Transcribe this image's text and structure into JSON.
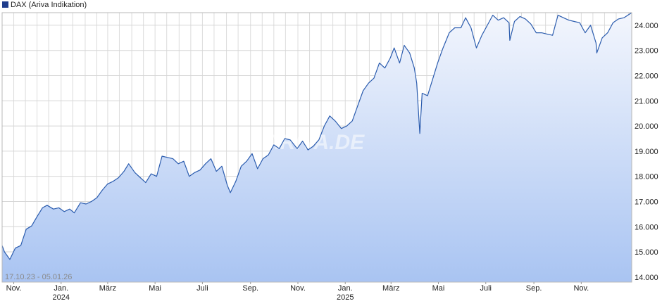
{
  "chart_data": {
    "type": "area",
    "title": "",
    "legend": {
      "label": "DAX (Ariva Indikation)",
      "color": "#1f3d8c",
      "position": "top-left"
    },
    "date_range": "17.10.23 - 05.01.26",
    "watermark": "ARIVA.DE",
    "line_color": "#2b5cae",
    "fill_top_color": "#f3f6fd",
    "fill_bottom_color": "#a9c4f2",
    "grid": true,
    "ylim": [
      13800,
      24500
    ],
    "yticks": [
      "14.000",
      "15.000",
      "16.000",
      "17.000",
      "18.000",
      "19.000",
      "20.000",
      "21.000",
      "22.000",
      "23.000",
      "24.000"
    ],
    "ytick_values": [
      14000,
      15000,
      16000,
      17000,
      18000,
      19000,
      20000,
      21000,
      22000,
      23000,
      24000
    ],
    "xlim": [
      "2023-10-17",
      "2026-01-05"
    ],
    "xticks": [
      {
        "date": "2023-11-01",
        "label": "Nov.",
        "year": ""
      },
      {
        "date": "2024-01-01",
        "label": "Jan.",
        "year": "2024"
      },
      {
        "date": "2024-03-01",
        "label": "März",
        "year": ""
      },
      {
        "date": "2024-05-01",
        "label": "Mai",
        "year": ""
      },
      {
        "date": "2024-07-01",
        "label": "Juli",
        "year": ""
      },
      {
        "date": "2024-09-01",
        "label": "Sep.",
        "year": ""
      },
      {
        "date": "2024-11-01",
        "label": "Nov.",
        "year": ""
      },
      {
        "date": "2025-01-01",
        "label": "Jan.",
        "year": "2025"
      },
      {
        "date": "2025-03-01",
        "label": "März",
        "year": ""
      },
      {
        "date": "2025-05-01",
        "label": "Mai",
        "year": ""
      },
      {
        "date": "2025-07-01",
        "label": "Juli",
        "year": ""
      },
      {
        "date": "2025-09-01",
        "label": "Sep.",
        "year": ""
      },
      {
        "date": "2025-11-01",
        "label": "Nov.",
        "year": ""
      }
    ],
    "series": [
      {
        "name": "DAX (Ariva Indikation)",
        "points": [
          [
            "2023-10-17",
            15250
          ],
          [
            "2023-10-20",
            15000
          ],
          [
            "2023-10-27",
            14700
          ],
          [
            "2023-11-03",
            15150
          ],
          [
            "2023-11-10",
            15250
          ],
          [
            "2023-11-17",
            15900
          ],
          [
            "2023-11-24",
            16030
          ],
          [
            "2023-12-01",
            16400
          ],
          [
            "2023-12-08",
            16750
          ],
          [
            "2023-12-14",
            16850
          ],
          [
            "2023-12-22",
            16700
          ],
          [
            "2023-12-29",
            16750
          ],
          [
            "2024-01-05",
            16600
          ],
          [
            "2024-01-12",
            16700
          ],
          [
            "2024-01-18",
            16550
          ],
          [
            "2024-01-26",
            16950
          ],
          [
            "2024-02-02",
            16900
          ],
          [
            "2024-02-09",
            17000
          ],
          [
            "2024-02-16",
            17150
          ],
          [
            "2024-02-23",
            17450
          ],
          [
            "2024-03-01",
            17700
          ],
          [
            "2024-03-08",
            17800
          ],
          [
            "2024-03-15",
            17950
          ],
          [
            "2024-03-22",
            18200
          ],
          [
            "2024-03-28",
            18500
          ],
          [
            "2024-04-05",
            18150
          ],
          [
            "2024-04-12",
            17950
          ],
          [
            "2024-04-19",
            17750
          ],
          [
            "2024-04-26",
            18100
          ],
          [
            "2024-05-03",
            18000
          ],
          [
            "2024-05-10",
            18800
          ],
          [
            "2024-05-17",
            18750
          ],
          [
            "2024-05-24",
            18700
          ],
          [
            "2024-05-31",
            18500
          ],
          [
            "2024-06-07",
            18600
          ],
          [
            "2024-06-14",
            18000
          ],
          [
            "2024-06-21",
            18150
          ],
          [
            "2024-06-28",
            18250
          ],
          [
            "2024-07-05",
            18500
          ],
          [
            "2024-07-12",
            18700
          ],
          [
            "2024-07-19",
            18200
          ],
          [
            "2024-07-26",
            18400
          ],
          [
            "2024-08-02",
            17650
          ],
          [
            "2024-08-06",
            17350
          ],
          [
            "2024-08-13",
            17800
          ],
          [
            "2024-08-20",
            18400
          ],
          [
            "2024-08-27",
            18600
          ],
          [
            "2024-09-03",
            18900
          ],
          [
            "2024-09-10",
            18300
          ],
          [
            "2024-09-17",
            18700
          ],
          [
            "2024-09-24",
            18850
          ],
          [
            "2024-10-01",
            19250
          ],
          [
            "2024-10-08",
            19100
          ],
          [
            "2024-10-15",
            19500
          ],
          [
            "2024-10-22",
            19450
          ],
          [
            "2024-10-31",
            19100
          ],
          [
            "2024-11-07",
            19400
          ],
          [
            "2024-11-14",
            19050
          ],
          [
            "2024-11-21",
            19200
          ],
          [
            "2024-11-28",
            19450
          ],
          [
            "2024-12-05",
            20000
          ],
          [
            "2024-12-12",
            20400
          ],
          [
            "2024-12-19",
            20200
          ],
          [
            "2024-12-27",
            19900
          ],
          [
            "2025-01-03",
            20000
          ],
          [
            "2025-01-10",
            20200
          ],
          [
            "2025-01-17",
            20800
          ],
          [
            "2025-01-24",
            21400
          ],
          [
            "2025-01-31",
            21700
          ],
          [
            "2025-02-07",
            21900
          ],
          [
            "2025-02-14",
            22500
          ],
          [
            "2025-02-21",
            22300
          ],
          [
            "2025-02-28",
            22700
          ],
          [
            "2025-03-05",
            23100
          ],
          [
            "2025-03-12",
            22500
          ],
          [
            "2025-03-18",
            23200
          ],
          [
            "2025-03-25",
            22900
          ],
          [
            "2025-03-31",
            22300
          ],
          [
            "2025-04-03",
            21700
          ],
          [
            "2025-04-07",
            19700
          ],
          [
            "2025-04-10",
            21300
          ],
          [
            "2025-04-17",
            21200
          ],
          [
            "2025-04-24",
            21900
          ],
          [
            "2025-04-30",
            22500
          ],
          [
            "2025-05-07",
            23100
          ],
          [
            "2025-05-15",
            23700
          ],
          [
            "2025-05-22",
            23900
          ],
          [
            "2025-05-30",
            23900
          ],
          [
            "2025-06-05",
            24300
          ],
          [
            "2025-06-12",
            23900
          ],
          [
            "2025-06-19",
            23100
          ],
          [
            "2025-06-26",
            23600
          ],
          [
            "2025-07-03",
            24000
          ],
          [
            "2025-07-10",
            24400
          ],
          [
            "2025-07-17",
            24200
          ],
          [
            "2025-07-24",
            24300
          ],
          [
            "2025-07-31",
            24100
          ],
          [
            "2025-08-01",
            23400
          ],
          [
            "2025-08-07",
            24150
          ],
          [
            "2025-08-14",
            24350
          ],
          [
            "2025-08-21",
            24250
          ],
          [
            "2025-08-28",
            24050
          ],
          [
            "2025-09-04",
            23700
          ],
          [
            "2025-09-11",
            23700
          ],
          [
            "2025-09-18",
            23650
          ],
          [
            "2025-09-25",
            23600
          ],
          [
            "2025-10-02",
            24400
          ],
          [
            "2025-10-09",
            24300
          ],
          [
            "2025-10-16",
            24200
          ],
          [
            "2025-10-23",
            24150
          ],
          [
            "2025-10-30",
            24100
          ],
          [
            "2025-11-06",
            23700
          ],
          [
            "2025-11-13",
            24000
          ],
          [
            "2025-11-20",
            23300
          ],
          [
            "2025-11-21",
            22900
          ],
          [
            "2025-11-28",
            23500
          ],
          [
            "2025-12-05",
            23700
          ],
          [
            "2025-12-12",
            24100
          ],
          [
            "2025-12-19",
            24250
          ],
          [
            "2025-12-26",
            24300
          ],
          [
            "2026-01-05",
            24500
          ]
        ]
      }
    ]
  }
}
